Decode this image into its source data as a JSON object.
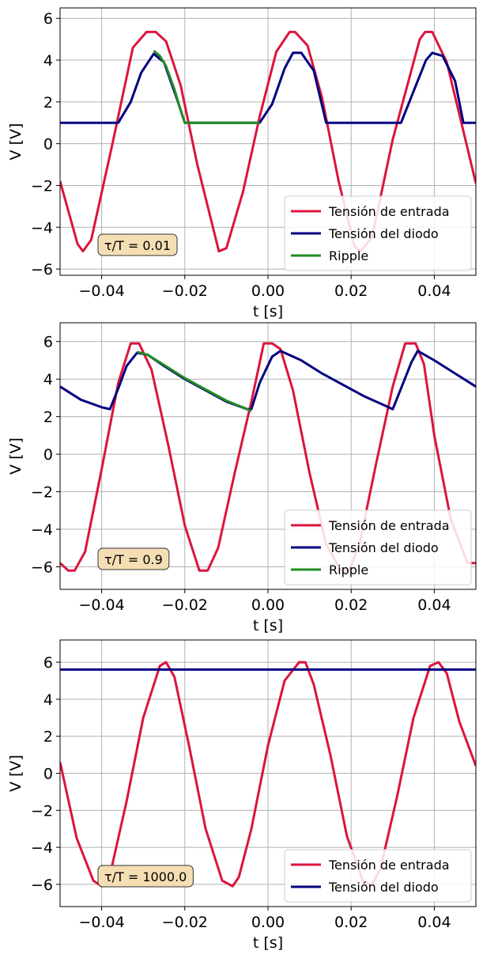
{
  "chart_data": [
    {
      "type": "line",
      "xlabel": "t [s]",
      "ylabel": "V [V]",
      "xlim": [
        -0.05,
        0.05
      ],
      "ylim": [
        -6.3,
        6.5
      ],
      "xticks": [
        -0.04,
        -0.02,
        0.0,
        0.02,
        0.04
      ],
      "xtick_labels": [
        "−0.04",
        "−0.02",
        "0.00",
        "0.02",
        "0.04"
      ],
      "yticks": [
        -6,
        -4,
        -2,
        0,
        2,
        4,
        6
      ],
      "ytick_labels": [
        "−6",
        "−4",
        "−2",
        "0",
        "2",
        "4",
        "6"
      ],
      "grid": true,
      "legend_position": "lower-right",
      "annotation": "τ/T = 0.01",
      "series": [
        {
          "name": "Tensión de entrada",
          "color": "#dc143c",
          "x": [
            -0.05,
            -0.0458,
            -0.0445,
            -0.0425,
            -0.0374,
            -0.0325,
            -0.0292,
            -0.027,
            -0.0245,
            -0.021,
            -0.017,
            -0.0118,
            -0.01,
            -0.006,
            -0.002,
            0.002,
            0.0052,
            0.0065,
            0.0095,
            0.013,
            0.017,
            0.0208,
            0.0222,
            0.025,
            0.03,
            0.0365,
            0.0378,
            0.0395,
            0.043,
            0.047,
            0.05
          ],
          "y": [
            -1.8,
            -4.8,
            -5.15,
            -4.6,
            0.0,
            4.6,
            5.35,
            5.35,
            4.9,
            2.8,
            -1.0,
            -5.15,
            -5.0,
            -2.3,
            1.3,
            4.4,
            5.35,
            5.35,
            4.7,
            2.2,
            -1.8,
            -4.9,
            -5.15,
            -4.5,
            0.2,
            5.0,
            5.35,
            5.35,
            3.9,
            0.6,
            -1.9
          ]
        },
        {
          "name": "Tensión del diodo",
          "color": "#000080",
          "x": [
            -0.05,
            -0.0385,
            -0.036,
            -0.033,
            -0.0305,
            -0.0275,
            -0.025,
            -0.022,
            -0.02,
            -0.018,
            -0.004,
            -0.002,
            0.001,
            0.004,
            0.006,
            0.008,
            0.011,
            0.014,
            0.03,
            0.032,
            0.035,
            0.038,
            0.0395,
            0.042,
            0.045,
            0.047,
            0.05
          ],
          "y": [
            1.0,
            1.0,
            1.0,
            2.0,
            3.4,
            4.3,
            3.9,
            2.2,
            1.0,
            1.0,
            1.0,
            1.0,
            1.9,
            3.6,
            4.35,
            4.35,
            3.5,
            1.0,
            1.0,
            1.0,
            2.5,
            4.0,
            4.35,
            4.2,
            3.0,
            1.0,
            1.0
          ]
        },
        {
          "name": "Ripple",
          "color": "#228b22",
          "x": [
            -0.0275,
            -0.026,
            -0.0245,
            -0.0225,
            -0.021,
            -0.02,
            -0.01,
            -0.002
          ],
          "y": [
            4.45,
            4.2,
            3.7,
            2.6,
            1.6,
            1.0,
            1.0,
            1.0
          ]
        }
      ]
    },
    {
      "type": "line",
      "xlabel": "t [s]",
      "ylabel": "V [V]",
      "xlim": [
        -0.05,
        0.05
      ],
      "ylim": [
        -7.2,
        7.0
      ],
      "xticks": [
        -0.04,
        -0.02,
        0.0,
        0.02,
        0.04
      ],
      "xtick_labels": [
        "−0.04",
        "−0.02",
        "0.00",
        "0.02",
        "0.04"
      ],
      "yticks": [
        -6,
        -4,
        -2,
        0,
        2,
        4,
        6
      ],
      "ytick_labels": [
        "−6",
        "−4",
        "−2",
        "0",
        "2",
        "4",
        "6"
      ],
      "grid": true,
      "legend_position": "lower-right",
      "annotation": "τ/T = 0.9",
      "series": [
        {
          "name": "Tensión de entrada",
          "color": "#dc143c",
          "x": [
            -0.05,
            -0.048,
            -0.0465,
            -0.044,
            -0.04,
            -0.036,
            -0.033,
            -0.031,
            -0.028,
            -0.024,
            -0.02,
            -0.0165,
            -0.0145,
            -0.012,
            -0.008,
            -0.004,
            -0.001,
            0.001,
            0.003,
            0.006,
            0.01,
            0.014,
            0.0175,
            0.0195,
            0.022,
            0.026,
            0.03,
            0.033,
            0.0355,
            0.0375,
            0.04,
            0.044,
            0.048,
            0.05
          ],
          "y": [
            -5.8,
            -6.2,
            -6.2,
            -5.2,
            -0.8,
            3.8,
            5.9,
            5.9,
            4.5,
            0.5,
            -3.8,
            -6.2,
            -6.2,
            -5.0,
            -1.0,
            2.8,
            5.9,
            5.9,
            5.6,
            3.4,
            -1.0,
            -4.8,
            -6.2,
            -6.2,
            -4.8,
            -0.5,
            3.6,
            5.9,
            5.9,
            4.8,
            1.0,
            -3.5,
            -5.8,
            -5.8
          ]
        },
        {
          "name": "Tensión del diodo",
          "color": "#000080",
          "x": [
            -0.05,
            -0.045,
            -0.04,
            -0.038,
            -0.036,
            -0.034,
            -0.0315,
            -0.029,
            -0.025,
            -0.02,
            -0.015,
            -0.01,
            -0.005,
            -0.004,
            -0.002,
            0.001,
            0.003,
            0.008,
            0.013,
            0.018,
            0.023,
            0.028,
            0.03,
            0.032,
            0.0345,
            0.036,
            0.04,
            0.045,
            0.05
          ],
          "y": [
            3.6,
            2.9,
            2.5,
            2.4,
            3.5,
            4.7,
            5.4,
            5.3,
            4.7,
            4.0,
            3.4,
            2.8,
            2.4,
            2.4,
            3.8,
            5.2,
            5.5,
            5.0,
            4.3,
            3.7,
            3.1,
            2.6,
            2.4,
            3.5,
            4.9,
            5.5,
            5.0,
            4.3,
            3.6
          ]
        },
        {
          "name": "Ripple",
          "color": "#228b22",
          "x": [
            -0.0315,
            -0.029,
            -0.025,
            -0.02,
            -0.015,
            -0.01,
            -0.005,
            -0.004
          ],
          "y": [
            5.45,
            5.3,
            4.75,
            4.05,
            3.45,
            2.85,
            2.4,
            2.3
          ]
        }
      ]
    },
    {
      "type": "line",
      "xlabel": "t [s]",
      "ylabel": "V [V]",
      "xlim": [
        -0.05,
        0.05
      ],
      "ylim": [
        -7.2,
        7.2
      ],
      "xticks": [
        -0.04,
        -0.02,
        0.0,
        0.02,
        0.04
      ],
      "xtick_labels": [
        "−0.04",
        "−0.02",
        "0.00",
        "0.02",
        "0.04"
      ],
      "yticks": [
        -6,
        -4,
        -2,
        0,
        2,
        4,
        6
      ],
      "ytick_labels": [
        "−6",
        "−4",
        "−2",
        "0",
        "2",
        "4",
        "6"
      ],
      "grid": true,
      "legend_position": "lower-right",
      "annotation": "τ/T = 1000.0",
      "series": [
        {
          "name": "Tensión de entrada",
          "color": "#dc143c",
          "x": [
            -0.05,
            -0.046,
            -0.042,
            -0.04,
            -0.038,
            -0.034,
            -0.03,
            -0.026,
            -0.0245,
            -0.0225,
            -0.019,
            -0.015,
            -0.011,
            -0.0085,
            -0.007,
            -0.004,
            0.0,
            0.004,
            0.0075,
            0.009,
            0.011,
            0.015,
            0.019,
            0.023,
            0.025,
            0.027,
            0.031,
            0.035,
            0.039,
            0.041,
            0.043,
            0.046,
            0.05
          ],
          "y": [
            0.6,
            -3.5,
            -5.8,
            -6.1,
            -5.5,
            -1.5,
            3.0,
            5.8,
            6.0,
            5.2,
            1.5,
            -3.0,
            -5.8,
            -6.1,
            -5.6,
            -3.0,
            1.5,
            5.0,
            6.0,
            6.0,
            4.8,
            1.0,
            -3.4,
            -5.9,
            -6.0,
            -5.2,
            -1.3,
            3.0,
            5.8,
            6.0,
            5.4,
            2.8,
            0.4
          ]
        },
        {
          "name": "Tensión del diodo",
          "color": "#000080",
          "x": [
            -0.05,
            0.05
          ],
          "y": [
            5.6,
            5.6
          ]
        }
      ]
    }
  ]
}
